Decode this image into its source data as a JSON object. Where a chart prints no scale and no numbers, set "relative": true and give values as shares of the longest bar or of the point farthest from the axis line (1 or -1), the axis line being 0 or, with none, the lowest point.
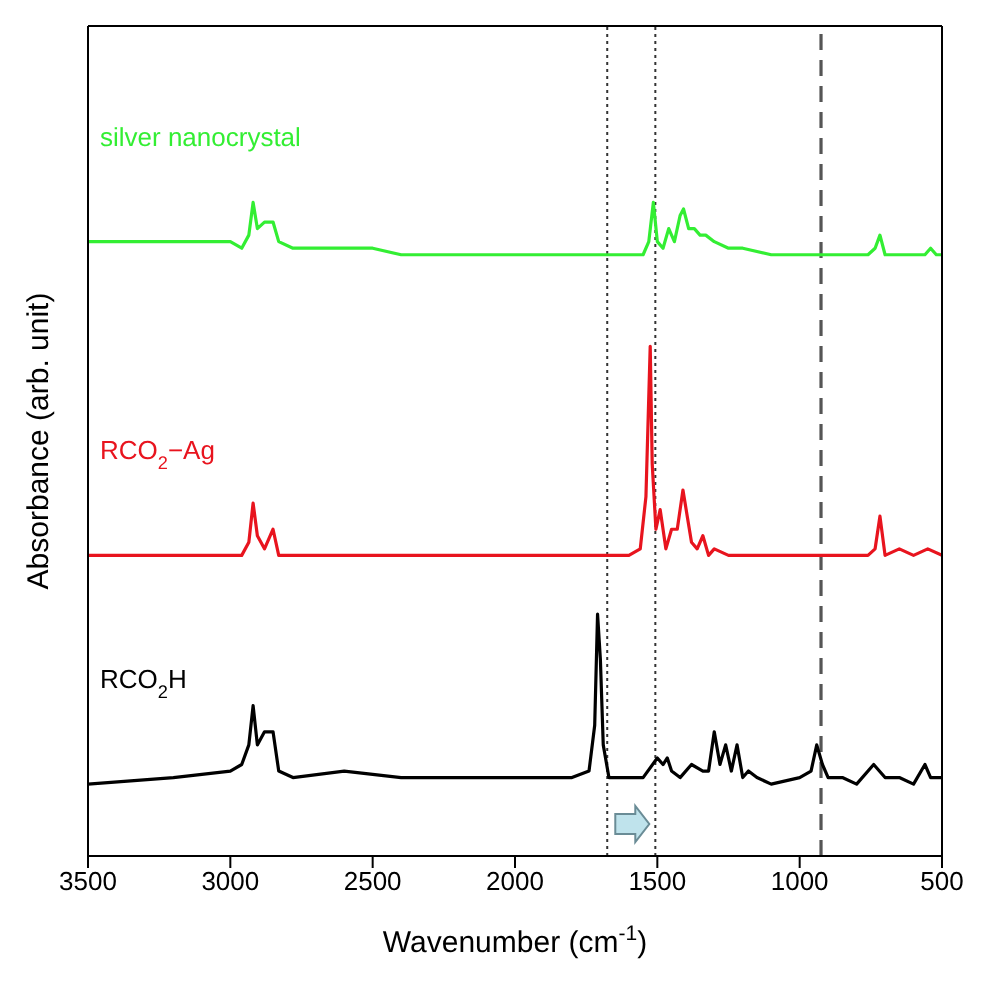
{
  "chart_data": {
    "type": "line",
    "xlabel": "Wavenumber (cm$^{-1}$)",
    "ylabel": "Absorbance (arb. unit)",
    "relative": true,
    "xlim": [
      3500,
      500
    ],
    "xticks": [
      3500,
      3000,
      2500,
      2000,
      1500,
      1000,
      500
    ],
    "tick_labels": "x",
    "marker": "none",
    "line_style": "solid",
    "ref_lines": [
      {
        "axis": "x",
        "value": 1676,
        "line_style": "dotted",
        "color": "#333333"
      },
      {
        "axis": "x",
        "value": 1507,
        "line_style": "dotted",
        "color": "#333333"
      },
      {
        "axis": "x",
        "value": 925,
        "line_style": "dashed",
        "color": "#555555"
      }
    ],
    "series": [
      {
        "name": "silver nanocrystal",
        "color": "#33ee33",
        "x": [
          3500,
          3200,
          3000,
          2960,
          2935,
          2920,
          2905,
          2880,
          2850,
          2830,
          2780,
          2500,
          2400,
          2350,
          2200,
          2000,
          1800,
          1700,
          1600,
          1550,
          1530,
          1514,
          1500,
          1480,
          1460,
          1440,
          1420,
          1408,
          1390,
          1370,
          1350,
          1330,
          1300,
          1250,
          1200,
          1100,
          1000,
          900,
          800,
          760,
          735,
          718,
          700,
          650,
          600,
          560,
          540,
          520,
          500
        ],
        "values": [
          0.94,
          0.94,
          0.94,
          0.93,
          0.95,
          1.0,
          0.96,
          0.97,
          0.97,
          0.94,
          0.93,
          0.93,
          0.92,
          0.92,
          0.92,
          0.92,
          0.92,
          0.92,
          0.92,
          0.92,
          0.94,
          1.0,
          0.94,
          0.93,
          0.96,
          0.94,
          0.98,
          0.99,
          0.96,
          0.96,
          0.95,
          0.95,
          0.94,
          0.93,
          0.93,
          0.92,
          0.92,
          0.92,
          0.92,
          0.92,
          0.93,
          0.95,
          0.92,
          0.92,
          0.92,
          0.92,
          0.93,
          0.92,
          0.92
        ]
      },
      {
        "name": "RCO$_{2}$−Ag",
        "color": "#e8141e",
        "x": [
          3500,
          3000,
          2960,
          2935,
          2920,
          2905,
          2880,
          2850,
          2830,
          2780,
          2400,
          2000,
          1700,
          1600,
          1560,
          1540,
          1525,
          1518,
          1505,
          1490,
          1470,
          1450,
          1430,
          1410,
          1395,
          1380,
          1360,
          1340,
          1320,
          1300,
          1250,
          1200,
          1100,
          1000,
          900,
          800,
          760,
          735,
          718,
          700,
          650,
          600,
          550,
          500
        ],
        "values": [
          0.46,
          0.46,
          0.46,
          0.48,
          0.54,
          0.49,
          0.47,
          0.5,
          0.46,
          0.46,
          0.46,
          0.46,
          0.46,
          0.46,
          0.47,
          0.55,
          0.78,
          0.6,
          0.5,
          0.53,
          0.47,
          0.5,
          0.5,
          0.56,
          0.52,
          0.48,
          0.47,
          0.49,
          0.46,
          0.47,
          0.46,
          0.46,
          0.46,
          0.46,
          0.46,
          0.46,
          0.46,
          0.47,
          0.52,
          0.46,
          0.47,
          0.46,
          0.47,
          0.46
        ]
      },
      {
        "name": "RCO$_{2}$H",
        "color": "#000000",
        "x": [
          3500,
          3200,
          3000,
          2960,
          2935,
          2920,
          2905,
          2880,
          2850,
          2830,
          2780,
          2600,
          2400,
          2000,
          1800,
          1740,
          1720,
          1710,
          1700,
          1690,
          1670,
          1600,
          1550,
          1500,
          1480,
          1465,
          1450,
          1420,
          1380,
          1340,
          1320,
          1300,
          1280,
          1260,
          1240,
          1220,
          1200,
          1180,
          1150,
          1100,
          1000,
          960,
          940,
          920,
          900,
          850,
          800,
          740,
          720,
          700,
          650,
          600,
          560,
          540,
          520,
          500
        ],
        "values": [
          0.11,
          0.12,
          0.13,
          0.14,
          0.17,
          0.23,
          0.17,
          0.19,
          0.19,
          0.13,
          0.12,
          0.13,
          0.12,
          0.12,
          0.12,
          0.13,
          0.2,
          0.37,
          0.3,
          0.17,
          0.12,
          0.12,
          0.12,
          0.15,
          0.14,
          0.15,
          0.13,
          0.12,
          0.14,
          0.13,
          0.13,
          0.19,
          0.14,
          0.17,
          0.13,
          0.17,
          0.12,
          0.13,
          0.12,
          0.11,
          0.12,
          0.13,
          0.17,
          0.14,
          0.12,
          0.12,
          0.11,
          0.14,
          0.13,
          0.12,
          0.12,
          0.11,
          0.14,
          0.12,
          0.12,
          0.12
        ]
      }
    ]
  }
}
